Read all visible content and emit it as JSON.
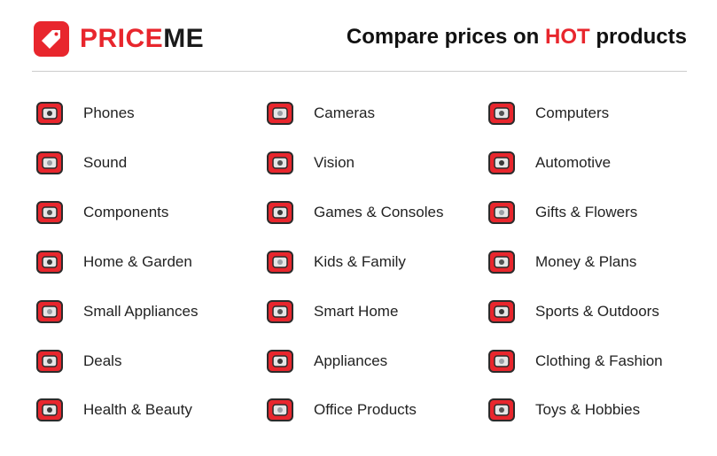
{
  "brand": {
    "name_red": "PRICE",
    "name_dark": "ME",
    "color": "#e8262d"
  },
  "header": {
    "tagline_pre": "Compare prices on ",
    "tagline_hot": "HOT",
    "tagline_post": " products"
  },
  "categories": [
    [
      {
        "label": "Phones",
        "icon": "phone-icon"
      },
      {
        "label": "Cameras",
        "icon": "camera-icon"
      },
      {
        "label": "Computers",
        "icon": "computer-icon"
      }
    ],
    [
      {
        "label": "Sound",
        "icon": "speaker-icon"
      },
      {
        "label": "Vision",
        "icon": "tv-icon"
      },
      {
        "label": "Automotive",
        "icon": "steering-wheel-icon"
      }
    ],
    [
      {
        "label": "Components",
        "icon": "graphics-card-icon"
      },
      {
        "label": "Games & Consoles",
        "icon": "gamepad-icon"
      },
      {
        "label": "Gifts & Flowers",
        "icon": "flowers-icon"
      }
    ],
    [
      {
        "label": "Home & Garden",
        "icon": "house-plant-icon"
      },
      {
        "label": "Kids & Family",
        "icon": "kid-blocks-icon"
      },
      {
        "label": "Money & Plans",
        "icon": "piggy-bank-icon"
      }
    ],
    [
      {
        "label": "Small Appliances",
        "icon": "kettle-icon"
      },
      {
        "label": "Smart Home",
        "icon": "smart-home-icon"
      },
      {
        "label": "Sports & Outdoors",
        "icon": "balls-icon"
      }
    ],
    [
      {
        "label": "Deals",
        "icon": "tag-icon"
      },
      {
        "label": "Appliances",
        "icon": "washing-machine-icon"
      },
      {
        "label": "Clothing & Fashion",
        "icon": "shirt-icon"
      }
    ],
    [
      {
        "label": "Health & Beauty",
        "icon": "cosmetics-icon"
      },
      {
        "label": "Office Products",
        "icon": "pen-holder-icon"
      },
      {
        "label": "Toys & Hobbies",
        "icon": "rocking-horse-icon"
      }
    ]
  ]
}
